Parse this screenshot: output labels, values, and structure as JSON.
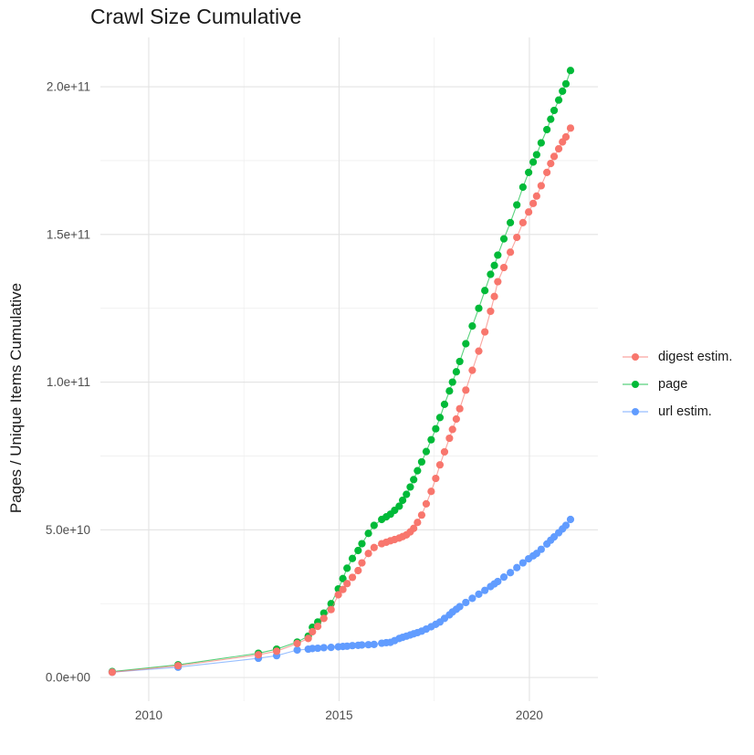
{
  "title": "Crawl Size Cumulative",
  "chart_data": {
    "type": "line",
    "title": "Crawl Size Cumulative",
    "xlabel": "",
    "ylabel": "Pages / Unique Items Cumulative",
    "y_unit": "pages, values given in billions (1e9)",
    "grid": true,
    "legend_position": "right",
    "xlim": [
      2008.73,
      2021.8
    ],
    "ylim_billions": [
      -8,
      216.7
    ],
    "x_major_ticks": [
      {
        "value": 2010,
        "label": "2010"
      },
      {
        "value": 2015,
        "label": "2015"
      },
      {
        "value": 2020,
        "label": "2020"
      }
    ],
    "x_minor_ticks": [
      2012.5,
      2017.5
    ],
    "y_major_ticks": [
      {
        "value": 0,
        "label": "0.0e+00"
      },
      {
        "value": 50,
        "label": "5.0e+10"
      },
      {
        "value": 100,
        "label": "1.0e+11"
      },
      {
        "value": 150,
        "label": "1.5e+11"
      },
      {
        "value": 200,
        "label": "2.0e+11"
      }
    ],
    "y_minor_ticks": [
      25,
      75,
      125,
      175
    ],
    "series": [
      {
        "name": "digest estim.",
        "color": "#F8766D",
        "points": [
          [
            2009.04,
            1.8
          ],
          [
            2010.77,
            4.0
          ],
          [
            2012.88,
            7.7
          ],
          [
            2013.36,
            8.9
          ],
          [
            2013.9,
            11.5
          ],
          [
            2014.19,
            13.2
          ],
          [
            2014.3,
            15.5
          ],
          [
            2014.44,
            17.3
          ],
          [
            2014.6,
            20.0
          ],
          [
            2014.79,
            23.0
          ],
          [
            2014.98,
            28.0
          ],
          [
            2015.1,
            29.8
          ],
          [
            2015.21,
            31.8
          ],
          [
            2015.35,
            33.9
          ],
          [
            2015.5,
            36.2
          ],
          [
            2015.6,
            38.8
          ],
          [
            2015.77,
            42.0
          ],
          [
            2015.92,
            44.0
          ],
          [
            2016.12,
            45.3
          ],
          [
            2016.24,
            45.8
          ],
          [
            2016.35,
            46.3
          ],
          [
            2016.46,
            46.7
          ],
          [
            2016.58,
            47.2
          ],
          [
            2016.67,
            47.7
          ],
          [
            2016.77,
            48.3
          ],
          [
            2016.87,
            49.3
          ],
          [
            2016.96,
            50.5
          ],
          [
            2017.06,
            52.5
          ],
          [
            2017.17,
            55.0
          ],
          [
            2017.29,
            58.8
          ],
          [
            2017.42,
            63.0
          ],
          [
            2017.54,
            67.4
          ],
          [
            2017.65,
            72.0
          ],
          [
            2017.77,
            76.4
          ],
          [
            2017.9,
            81.0
          ],
          [
            2017.98,
            84.0
          ],
          [
            2018.08,
            87.5
          ],
          [
            2018.17,
            91.0
          ],
          [
            2018.33,
            97.3
          ],
          [
            2018.5,
            104.0
          ],
          [
            2018.67,
            110.5
          ],
          [
            2018.83,
            117.0
          ],
          [
            2018.98,
            124.0
          ],
          [
            2019.08,
            129.0
          ],
          [
            2019.17,
            134.0
          ],
          [
            2019.33,
            138.8
          ],
          [
            2019.5,
            144.0
          ],
          [
            2019.67,
            149.0
          ],
          [
            2019.83,
            154.0
          ],
          [
            2019.98,
            157.6
          ],
          [
            2020.1,
            160.5
          ],
          [
            2020.19,
            163.0
          ],
          [
            2020.31,
            166.5
          ],
          [
            2020.46,
            171.0
          ],
          [
            2020.56,
            174.0
          ],
          [
            2020.65,
            176.4
          ],
          [
            2020.77,
            179.0
          ],
          [
            2020.87,
            181.3
          ],
          [
            2020.96,
            183.0
          ],
          [
            2021.08,
            186.0
          ]
        ]
      },
      {
        "name": "page",
        "color": "#00BA38",
        "points": [
          [
            2009.04,
            2.0
          ],
          [
            2010.77,
            4.3
          ],
          [
            2012.88,
            8.2
          ],
          [
            2013.36,
            9.6
          ],
          [
            2013.9,
            12.0
          ],
          [
            2014.19,
            14.0
          ],
          [
            2014.3,
            17.0
          ],
          [
            2014.44,
            18.8
          ],
          [
            2014.6,
            21.8
          ],
          [
            2014.79,
            25.0
          ],
          [
            2014.98,
            30.0
          ],
          [
            2015.1,
            33.5
          ],
          [
            2015.21,
            37.0
          ],
          [
            2015.35,
            40.3
          ],
          [
            2015.5,
            43.0
          ],
          [
            2015.6,
            45.3
          ],
          [
            2015.77,
            48.8
          ],
          [
            2015.92,
            51.5
          ],
          [
            2016.12,
            53.5
          ],
          [
            2016.24,
            54.4
          ],
          [
            2016.35,
            55.3
          ],
          [
            2016.46,
            56.6
          ],
          [
            2016.58,
            58.0
          ],
          [
            2016.67,
            60.0
          ],
          [
            2016.77,
            62.0
          ],
          [
            2016.87,
            64.5
          ],
          [
            2016.96,
            67.0
          ],
          [
            2017.06,
            70.0
          ],
          [
            2017.17,
            73.0
          ],
          [
            2017.29,
            76.5
          ],
          [
            2017.42,
            80.5
          ],
          [
            2017.54,
            84.2
          ],
          [
            2017.65,
            88.0
          ],
          [
            2017.77,
            92.5
          ],
          [
            2017.9,
            97.0
          ],
          [
            2017.98,
            100.0
          ],
          [
            2018.08,
            103.5
          ],
          [
            2018.17,
            107.0
          ],
          [
            2018.33,
            113.0
          ],
          [
            2018.5,
            119.0
          ],
          [
            2018.67,
            125.0
          ],
          [
            2018.83,
            131.0
          ],
          [
            2018.98,
            136.5
          ],
          [
            2019.08,
            139.5
          ],
          [
            2019.17,
            143.0
          ],
          [
            2019.33,
            148.5
          ],
          [
            2019.5,
            154.0
          ],
          [
            2019.67,
            160.0
          ],
          [
            2019.83,
            166.0
          ],
          [
            2019.98,
            171.0
          ],
          [
            2020.1,
            174.5
          ],
          [
            2020.19,
            177.0
          ],
          [
            2020.31,
            181.0
          ],
          [
            2020.46,
            185.5
          ],
          [
            2020.56,
            189.0
          ],
          [
            2020.65,
            192.0
          ],
          [
            2020.77,
            195.5
          ],
          [
            2020.87,
            198.5
          ],
          [
            2020.96,
            201.0
          ],
          [
            2021.08,
            205.5
          ]
        ]
      },
      {
        "name": "url estim.",
        "color": "#619CFF",
        "points": [
          [
            2009.04,
            1.8
          ],
          [
            2010.77,
            3.5
          ],
          [
            2012.88,
            6.5
          ],
          [
            2013.36,
            7.4
          ],
          [
            2013.9,
            9.3
          ],
          [
            2014.19,
            9.6
          ],
          [
            2014.3,
            9.8
          ],
          [
            2014.44,
            9.9
          ],
          [
            2014.6,
            10.1
          ],
          [
            2014.79,
            10.2
          ],
          [
            2014.98,
            10.4
          ],
          [
            2015.1,
            10.5
          ],
          [
            2015.21,
            10.6
          ],
          [
            2015.35,
            10.8
          ],
          [
            2015.5,
            10.9
          ],
          [
            2015.6,
            11.0
          ],
          [
            2015.77,
            11.1
          ],
          [
            2015.92,
            11.2
          ],
          [
            2016.12,
            11.6
          ],
          [
            2016.24,
            11.8
          ],
          [
            2016.35,
            11.9
          ],
          [
            2016.46,
            12.5
          ],
          [
            2016.58,
            13.2
          ],
          [
            2016.67,
            13.6
          ],
          [
            2016.77,
            14.0
          ],
          [
            2016.87,
            14.4
          ],
          [
            2016.96,
            14.8
          ],
          [
            2017.06,
            15.2
          ],
          [
            2017.17,
            15.7
          ],
          [
            2017.29,
            16.4
          ],
          [
            2017.42,
            17.2
          ],
          [
            2017.54,
            18.0
          ],
          [
            2017.65,
            18.8
          ],
          [
            2017.77,
            20.0
          ],
          [
            2017.9,
            21.2
          ],
          [
            2017.98,
            22.2
          ],
          [
            2018.08,
            23.1
          ],
          [
            2018.17,
            24.0
          ],
          [
            2018.33,
            25.4
          ],
          [
            2018.5,
            26.8
          ],
          [
            2018.67,
            28.2
          ],
          [
            2018.83,
            29.5
          ],
          [
            2018.98,
            30.8
          ],
          [
            2019.08,
            31.7
          ],
          [
            2019.17,
            32.5
          ],
          [
            2019.33,
            34.0
          ],
          [
            2019.5,
            35.5
          ],
          [
            2019.67,
            37.2
          ],
          [
            2019.83,
            38.8
          ],
          [
            2019.98,
            40.2
          ],
          [
            2020.1,
            41.2
          ],
          [
            2020.19,
            42.0
          ],
          [
            2020.31,
            43.4
          ],
          [
            2020.46,
            45.2
          ],
          [
            2020.56,
            46.5
          ],
          [
            2020.65,
            47.6
          ],
          [
            2020.77,
            49.0
          ],
          [
            2020.87,
            50.3
          ],
          [
            2020.96,
            51.5
          ],
          [
            2021.08,
            53.5
          ]
        ]
      }
    ],
    "style": {
      "grid_major_color": "#E3E3E3",
      "grid_minor_color": "#EFEFEF",
      "tick_label_color": "#4D4D4D",
      "text_color": "#1a1a1a",
      "background": "#ffffff"
    }
  }
}
